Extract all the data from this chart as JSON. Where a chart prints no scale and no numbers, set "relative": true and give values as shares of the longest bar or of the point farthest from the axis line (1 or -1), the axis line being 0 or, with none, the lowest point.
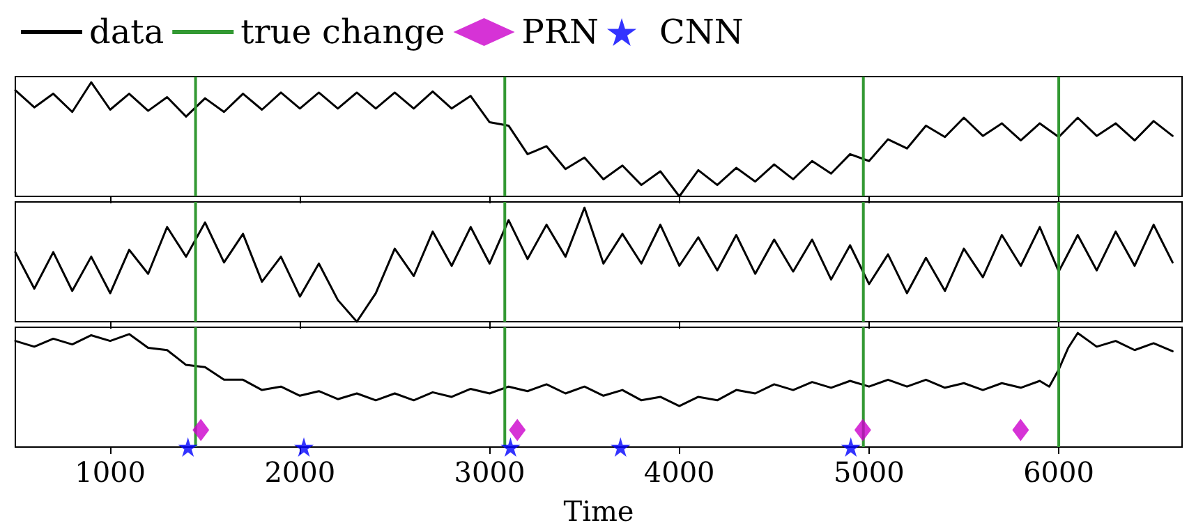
{
  "chart_data": [
    {
      "type": "line",
      "relative": true,
      "xlim": [
        500,
        6650
      ],
      "xticks": [
        1000,
        2000,
        3000,
        4000,
        5000,
        6000
      ],
      "tick_labels": false,
      "grid": false,
      "legend": "top left",
      "series": [
        {
          "name": "data",
          "color": "#000000",
          "marker": "none",
          "line_style": "solid",
          "x": [
            500,
            600,
            700,
            800,
            900,
            1000,
            1100,
            1200,
            1300,
            1400,
            1500,
            1600,
            1700,
            1800,
            1900,
            2000,
            2100,
            2200,
            2300,
            2400,
            2500,
            2600,
            2700,
            2800,
            2900,
            3000,
            3100,
            3200,
            3300,
            3400,
            3500,
            3600,
            3700,
            3800,
            3900,
            4000,
            4100,
            4200,
            4300,
            4400,
            4500,
            4600,
            4700,
            4800,
            4900,
            5000,
            5100,
            5200,
            5300,
            5400,
            5500,
            5600,
            5700,
            5800,
            5900,
            6000,
            6100,
            6200,
            6300,
            6400,
            6500,
            6600
          ],
          "values": [
            0.93,
            0.78,
            0.9,
            0.74,
            1,
            0.76,
            0.9,
            0.75,
            0.87,
            0.7,
            0.86,
            0.74,
            0.9,
            0.76,
            0.91,
            0.77,
            0.91,
            0.77,
            0.91,
            0.77,
            0.91,
            0.77,
            0.92,
            0.77,
            0.88,
            0.65,
            0.62,
            0.37,
            0.44,
            0.24,
            0.34,
            0.15,
            0.27,
            0.1,
            0.22,
            0,
            0.23,
            0.1,
            0.25,
            0.13,
            0.28,
            0.15,
            0.31,
            0.2,
            0.37,
            0.31,
            0.5,
            0.42,
            0.62,
            0.52,
            0.69,
            0.53,
            0.64,
            0.49,
            0.64,
            0.52,
            0.69,
            0.53,
            0.64,
            0.49,
            0.66,
            0.53
          ]
        }
      ],
      "ref_lines": [
        {
          "axis": "x",
          "value": 1450,
          "label": "true change",
          "color": "#339933"
        },
        {
          "axis": "x",
          "value": 3080,
          "color": "#339933"
        },
        {
          "axis": "x",
          "value": 4970,
          "color": "#339933"
        },
        {
          "axis": "x",
          "value": 6000,
          "color": "#339933"
        }
      ]
    },
    {
      "type": "line",
      "relative": true,
      "xlim": [
        500,
        6650
      ],
      "xticks": [
        1000,
        2000,
        3000,
        4000,
        5000,
        6000
      ],
      "tick_labels": false,
      "grid": false,
      "series": [
        {
          "name": "data",
          "color": "#000000",
          "marker": "none",
          "line_style": "solid",
          "x": [
            500,
            600,
            700,
            800,
            900,
            1000,
            1100,
            1200,
            1300,
            1400,
            1500,
            1600,
            1700,
            1800,
            1900,
            2000,
            2100,
            2200,
            2300,
            2400,
            2500,
            2600,
            2700,
            2800,
            2900,
            3000,
            3100,
            3200,
            3300,
            3400,
            3500,
            3600,
            3700,
            3800,
            3900,
            4000,
            4100,
            4200,
            4300,
            4400,
            4500,
            4600,
            4700,
            4800,
            4900,
            5000,
            5100,
            5200,
            5300,
            5400,
            5500,
            5600,
            5700,
            5800,
            5900,
            6000,
            6100,
            6200,
            6300,
            6400,
            6500,
            6600
          ],
          "values": [
            0.61,
            0.29,
            0.61,
            0.27,
            0.57,
            0.25,
            0.63,
            0.42,
            0.83,
            0.57,
            0.87,
            0.52,
            0.77,
            0.35,
            0.57,
            0.22,
            0.51,
            0.19,
            0,
            0.25,
            0.64,
            0.4,
            0.79,
            0.49,
            0.83,
            0.51,
            0.89,
            0.55,
            0.85,
            0.57,
            1,
            0.51,
            0.77,
            0.51,
            0.85,
            0.49,
            0.74,
            0.45,
            0.76,
            0.42,
            0.72,
            0.44,
            0.72,
            0.37,
            0.67,
            0.33,
            0.59,
            0.25,
            0.56,
            0.27,
            0.64,
            0.39,
            0.76,
            0.49,
            0.83,
            0.44,
            0.76,
            0.45,
            0.79,
            0.49,
            0.85,
            0.52
          ]
        }
      ],
      "ref_lines": [
        {
          "axis": "x",
          "value": 1450,
          "color": "#339933"
        },
        {
          "axis": "x",
          "value": 3080,
          "color": "#339933"
        },
        {
          "axis": "x",
          "value": 4970,
          "color": "#339933"
        },
        {
          "axis": "x",
          "value": 6000,
          "color": "#339933"
        }
      ]
    },
    {
      "type": "line",
      "relative": true,
      "xlim": [
        500,
        6650
      ],
      "xticks": [
        1000,
        2000,
        3000,
        4000,
        5000,
        6000
      ],
      "tick_labels": "x",
      "grid": false,
      "xlabel": "Time",
      "legend": "top left",
      "series": [
        {
          "name": "data",
          "color": "#000000",
          "marker": "none",
          "line_style": "solid",
          "x": [
            500,
            600,
            700,
            800,
            900,
            1000,
            1100,
            1200,
            1300,
            1400,
            1500,
            1600,
            1700,
            1800,
            1900,
            2000,
            2100,
            2200,
            2300,
            2400,
            2500,
            2600,
            2700,
            2800,
            2900,
            3000,
            3100,
            3200,
            3300,
            3400,
            3500,
            3600,
            3700,
            3800,
            3900,
            4000,
            4100,
            4200,
            4300,
            4400,
            4500,
            4600,
            4700,
            4800,
            4900,
            5000,
            5100,
            5200,
            5300,
            5400,
            5500,
            5600,
            5700,
            5800,
            5900,
            5950,
            6000,
            6050,
            6100,
            6200,
            6300,
            6400,
            6500,
            6600
          ],
          "values": [
            0.93,
            0.88,
            0.95,
            0.9,
            0.98,
            0.93,
            0.99,
            0.87,
            0.85,
            0.72,
            0.7,
            0.59,
            0.59,
            0.5,
            0.53,
            0.45,
            0.49,
            0.42,
            0.47,
            0.41,
            0.47,
            0.41,
            0.48,
            0.44,
            0.51,
            0.47,
            0.53,
            0.49,
            0.55,
            0.47,
            0.53,
            0.45,
            0.5,
            0.41,
            0.44,
            0.36,
            0.44,
            0.41,
            0.5,
            0.47,
            0.55,
            0.5,
            0.57,
            0.52,
            0.58,
            0.53,
            0.59,
            0.53,
            0.59,
            0.52,
            0.56,
            0.5,
            0.56,
            0.52,
            0.58,
            0.53,
            0.68,
            0.87,
            1,
            0.88,
            0.93,
            0.85,
            0.91,
            0.84
          ]
        },
        {
          "name": "PRN",
          "type": "scatter",
          "color": "#cc00cc",
          "marker": "diamond",
          "x": [
            1478,
            3146,
            4967,
            5799
          ],
          "values": [
            0.15,
            0.15,
            0.15,
            0.15
          ]
        },
        {
          "name": "CNN",
          "type": "scatter",
          "color": "#0000ff",
          "marker": "star",
          "x": [
            1410,
            2021,
            3110,
            3690,
            4904
          ],
          "values": [
            0,
            0,
            0,
            0,
            0
          ]
        }
      ],
      "ref_lines": [
        {
          "axis": "x",
          "value": 1450,
          "color": "#339933"
        },
        {
          "axis": "x",
          "value": 3080,
          "color": "#339933"
        },
        {
          "axis": "x",
          "value": 4970,
          "color": "#339933"
        },
        {
          "axis": "x",
          "value": 6000,
          "color": "#339933"
        }
      ]
    }
  ]
}
